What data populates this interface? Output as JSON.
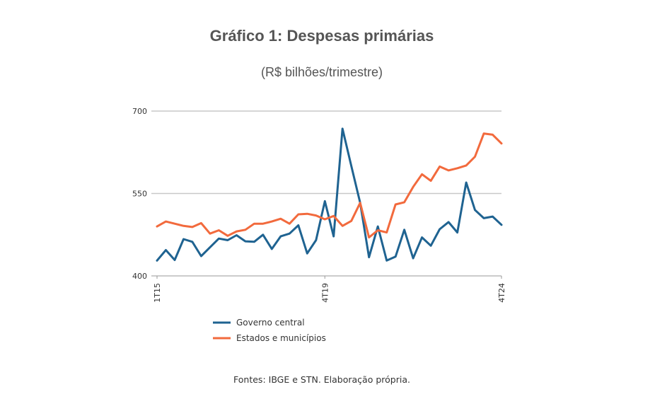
{
  "title": "Gráfico 1: Despesas primárias",
  "subtitle": "(R$ bilhões/trimestre)",
  "source": "Fontes: IBGE e STN. Elaboração própria.",
  "colors": {
    "governo": "#1F6391",
    "estados": "#F26A3D",
    "grid": "#c8c8c8"
  },
  "chart_data": {
    "type": "line",
    "title": "Gráfico 1: Despesas primárias",
    "subtitle": "(R$ bilhões/trimestre)",
    "x": [
      "1T15",
      "2T15",
      "3T15",
      "4T15",
      "1T16",
      "2T16",
      "3T16",
      "4T16",
      "1T17",
      "2T17",
      "3T17",
      "4T17",
      "1T18",
      "2T18",
      "3T18",
      "4T18",
      "1T19",
      "2T19",
      "3T19",
      "4T19",
      "1T20",
      "2T20",
      "3T20",
      "4T20",
      "1T21",
      "2T21",
      "3T21",
      "4T21",
      "1T22",
      "2T22",
      "3T22",
      "4T22",
      "1T23",
      "2T23",
      "3T23",
      "4T23",
      "1T24",
      "2T24",
      "3T24",
      "4T24"
    ],
    "x_tick_labels": [
      "1T15",
      "4T19",
      "4T24"
    ],
    "y_ticks": [
      400,
      550,
      700
    ],
    "ylim": [
      400,
      700
    ],
    "grid": true,
    "legend_position": "bottom-left",
    "series": [
      {
        "name": "Governo central",
        "color": "#1F6391",
        "values": [
          428,
          447,
          429,
          467,
          462,
          436,
          452,
          468,
          465,
          474,
          463,
          462,
          475,
          449,
          472,
          477,
          492,
          441,
          465,
          536,
          472,
          668,
          600,
          533,
          434,
          490,
          428,
          435,
          484,
          432,
          470,
          455,
          485,
          498,
          479,
          570,
          520,
          505,
          508,
          493
        ]
      },
      {
        "name": "Estados e municípios",
        "color": "#F26A3D",
        "values": [
          490,
          499,
          495,
          491,
          489,
          496,
          477,
          483,
          473,
          481,
          484,
          495,
          495,
          499,
          504,
          495,
          512,
          513,
          510,
          503,
          509,
          491,
          500,
          533,
          470,
          483,
          479,
          530,
          534,
          562,
          585,
          573,
          599,
          592,
          596,
          601,
          617,
          659,
          657,
          641
        ]
      }
    ]
  }
}
